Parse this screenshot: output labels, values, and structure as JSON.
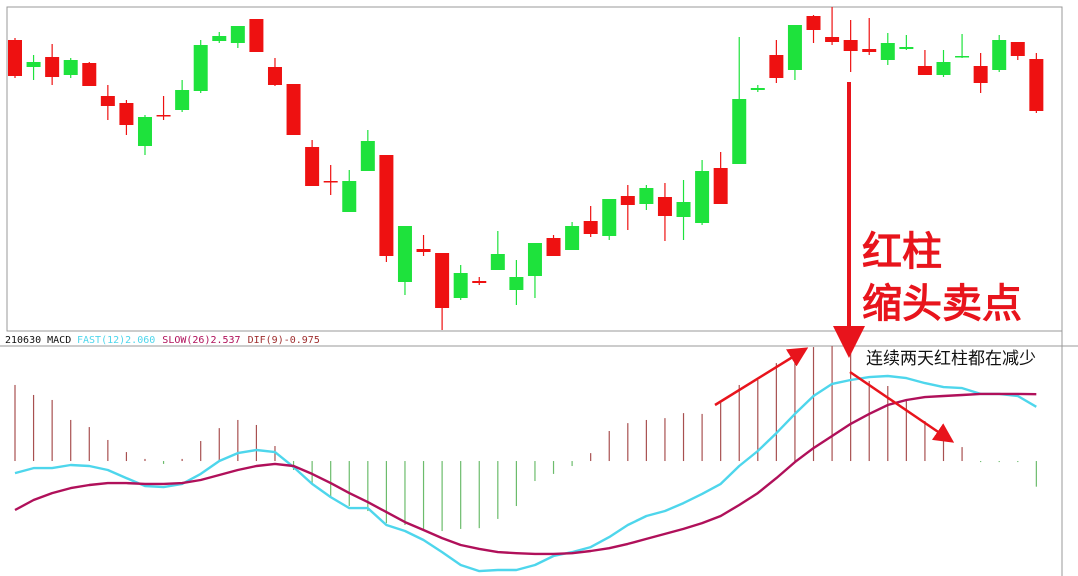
{
  "chart_data": [
    {
      "type": "candlestick",
      "up_color": "#1ee23c",
      "down_color": "#ee1111",
      "ylim": [
        0,
        324
      ],
      "open": [
        291,
        264,
        274,
        256,
        268,
        235,
        228,
        185,
        216,
        221,
        240,
        290,
        288,
        312,
        264,
        247,
        184,
        150,
        119,
        160,
        176,
        49,
        82,
        78,
        33,
        50,
        61,
        41,
        55,
        93,
        81,
        110,
        95,
        135,
        127,
        134,
        114,
        108,
        163,
        167,
        241,
        276,
        261,
        315,
        294,
        291,
        282,
        271,
        282,
        265,
        256,
        274,
        265,
        261,
        289,
        272
      ],
      "high": [
        293,
        276,
        287,
        273,
        269,
        246,
        231,
        216,
        235,
        251,
        291,
        299,
        305,
        312,
        273,
        247,
        191,
        166,
        161,
        201,
        176,
        105,
        96,
        78,
        66,
        54,
        100,
        71,
        88,
        96,
        109,
        125,
        132,
        146,
        146,
        148,
        151,
        171,
        179,
        294,
        246,
        291,
        306,
        316,
        324,
        311,
        313,
        298,
        296,
        281,
        281,
        297,
        278,
        296,
        289,
        278
      ],
      "low": [
        253,
        251,
        246,
        253,
        245,
        211,
        196,
        176,
        211,
        219,
        238,
        288,
        283,
        279,
        245,
        196,
        145,
        136,
        119,
        160,
        69,
        36,
        75,
        1,
        31,
        46,
        61,
        26,
        33,
        75,
        81,
        94,
        91,
        101,
        121,
        90,
        91,
        106,
        127,
        167,
        239,
        248,
        251,
        288,
        286,
        259,
        276,
        266,
        281,
        256,
        254,
        273,
        238,
        259,
        271,
        218
      ],
      "close": [
        255,
        269,
        254,
        271,
        245,
        225,
        206,
        214,
        215,
        241,
        286,
        295,
        305,
        279,
        246,
        196,
        145,
        149,
        150,
        190,
        75,
        105,
        79,
        23,
        58,
        48,
        77,
        54,
        88,
        75,
        105,
        97,
        132,
        126,
        143,
        115,
        129,
        160,
        127,
        232,
        243,
        253,
        306,
        301,
        289,
        280,
        279,
        288,
        284,
        256,
        269,
        275,
        248,
        291,
        275,
        220
      ]
    },
    {
      "type": "macd",
      "title": "210630 MACD",
      "ylim": [
        -4.33,
        4.37
      ],
      "series": [
        {
          "name": "FAST(12)2.060",
          "type": "line",
          "color": "#4ed6ec",
          "values": [
            -0.46,
            -0.27,
            -0.27,
            -0.15,
            -0.19,
            -0.34,
            -0.65,
            -0.95,
            -0.99,
            -0.87,
            -0.49,
            0,
            0.3,
            0.42,
            0.34,
            -0.23,
            -0.87,
            -1.37,
            -1.79,
            -1.79,
            -2.43,
            -2.66,
            -3.0,
            -3.46,
            -3.95,
            -4.18,
            -4.14,
            -4.14,
            -3.95,
            -3.61,
            -3.46,
            -3.27,
            -2.89,
            -2.43,
            -2.09,
            -1.9,
            -1.6,
            -1.25,
            -0.87,
            -0.19,
            0.38,
            1.06,
            1.79,
            2.47,
            2.93,
            3.08,
            3.19,
            3.23,
            3.15,
            2.96,
            2.81,
            2.77,
            2.55,
            2.55,
            2.47,
            2.06
          ]
        },
        {
          "name": "SLOW(26)2.537",
          "type": "line",
          "color": "#b0105a",
          "values": [
            -1.86,
            -1.48,
            -1.22,
            -1.03,
            -0.91,
            -0.84,
            -0.84,
            -0.87,
            -0.87,
            -0.84,
            -0.72,
            -0.53,
            -0.34,
            -0.19,
            -0.11,
            -0.19,
            -0.49,
            -0.84,
            -1.22,
            -1.56,
            -1.94,
            -2.32,
            -2.62,
            -2.93,
            -3.19,
            -3.34,
            -3.46,
            -3.5,
            -3.53,
            -3.53,
            -3.5,
            -3.42,
            -3.31,
            -3.15,
            -2.96,
            -2.77,
            -2.58,
            -2.36,
            -2.09,
            -1.67,
            -1.22,
            -0.65,
            -0.04,
            0.49,
            0.95,
            1.41,
            1.79,
            2.13,
            2.32,
            2.43,
            2.47,
            2.51,
            2.55,
            2.55,
            2.55,
            2.537
          ]
        },
        {
          "name": "DIF(9)-0.975",
          "type": "bar",
          "color": "#a85050",
          "negative_color": "#6cbc6c",
          "values": [
            2.89,
            2.51,
            2.32,
            1.56,
            1.29,
            0.8,
            0.34,
            0.08,
            -0.11,
            0.08,
            0.76,
            1.25,
            1.56,
            1.37,
            0.57,
            -0.34,
            -0.91,
            -1.37,
            -1.71,
            -1.9,
            -2.36,
            -2.43,
            -2.58,
            -2.66,
            -2.58,
            -2.55,
            -2.2,
            -1.71,
            -0.76,
            -0.49,
            -0.19,
            0.3,
            1.14,
            1.44,
            1.56,
            1.63,
            1.82,
            1.79,
            2.28,
            2.89,
            3.08,
            3.72,
            3.95,
            4.33,
            4.37,
            4.1,
            3.04,
            2.85,
            2.28,
            1.52,
            0.84,
            0.53,
            -0.04,
            -0.04,
            -0.04,
            -0.975
          ]
        }
      ]
    }
  ],
  "annotations": [
    "红柱",
    "缩头卖点",
    "连续两天红柱都在减少"
  ]
}
